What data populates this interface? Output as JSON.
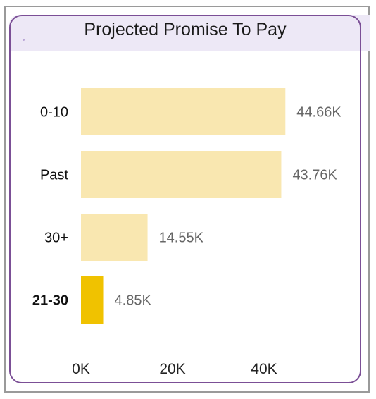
{
  "chart_data": {
    "type": "bar",
    "orientation": "horizontal",
    "title": "Projected Promise To Pay",
    "categories": [
      "0-10",
      "Past",
      "30+",
      "21-30"
    ],
    "values": [
      44.66,
      43.76,
      14.55,
      4.85
    ],
    "value_labels": [
      "44.66K",
      "43.76K",
      "14.55K",
      "4.85K"
    ],
    "value_unit": "K",
    "xlim": [
      0,
      50
    ],
    "x_ticks": [
      0,
      20,
      40
    ],
    "x_tick_labels": [
      "0K",
      "20K",
      "40K"
    ],
    "highlighted_category": "21-30",
    "colors": {
      "bar": "#f9e7b0",
      "highlight": "#f0c200"
    },
    "grid": false,
    "legend": "none"
  }
}
